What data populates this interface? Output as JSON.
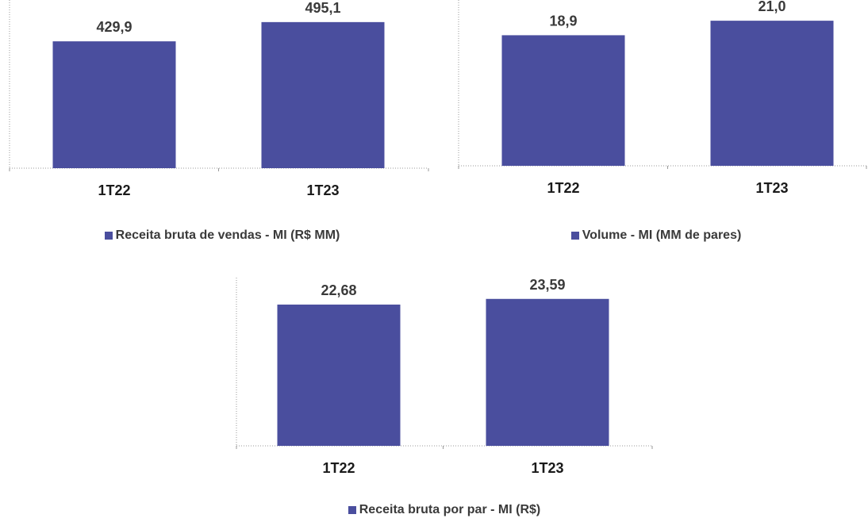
{
  "chart_data": [
    {
      "type": "bar",
      "categories": [
        "1T22",
        "1T23"
      ],
      "values": [
        429.9,
        495.1
      ],
      "value_labels": [
        "429,9",
        "495,1"
      ],
      "legend": "Receita bruta de vendas - MI (R$ MM)",
      "ylim": [
        0,
        570
      ],
      "grid": false,
      "legend_position": "bottom",
      "color": "#4a4e9e"
    },
    {
      "type": "bar",
      "categories": [
        "1T22",
        "1T23"
      ],
      "values": [
        18.9,
        21.0
      ],
      "value_labels": [
        "18,9",
        "21,0"
      ],
      "legend": "Volume - MI (MM de pares)",
      "ylim": [
        0,
        24
      ],
      "grid": false,
      "legend_position": "bottom",
      "color": "#4a4e9e"
    },
    {
      "type": "bar",
      "categories": [
        "1T22",
        "1T23"
      ],
      "values": [
        22.68,
        23.59
      ],
      "value_labels": [
        "22,68",
        "23,59"
      ],
      "legend": "Receita bruta por par - MI (R$)",
      "ylim": [
        0,
        27
      ],
      "grid": false,
      "legend_position": "bottom",
      "color": "#4a4e9e"
    }
  ]
}
